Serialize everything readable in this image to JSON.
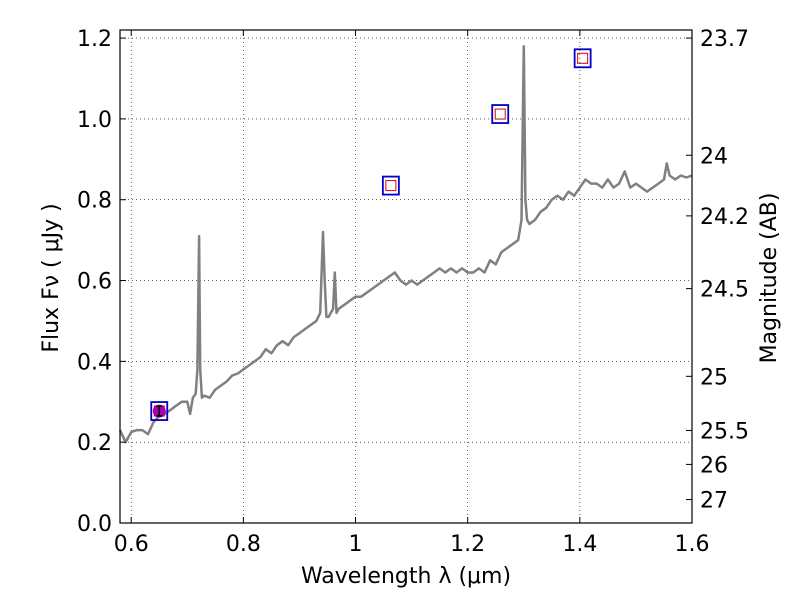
{
  "chart_data": {
    "type": "line",
    "xlabel": "Wavelength  λ (μm)",
    "ylabel": "Flux  Fν  ( μJy )",
    "y2label": "Magnitude (AB)",
    "xlim": [
      0.58,
      1.6
    ],
    "ylim": [
      0.0,
      1.22
    ],
    "grid": true,
    "x_ticks": [
      0.6,
      0.8,
      1.0,
      1.2,
      1.4,
      1.6
    ],
    "x_tick_labels": [
      "0.6",
      "0.8",
      "1",
      "1.2",
      "1.4",
      "1.6"
    ],
    "y_ticks": [
      0.0,
      0.2,
      0.4,
      0.6,
      0.8,
      1.0,
      1.2
    ],
    "y_tick_labels": [
      "0.0",
      "0.2",
      "0.4",
      "0.6",
      "0.8",
      "1.0",
      "1.2"
    ],
    "mag_ticks": [
      {
        "label": "23.7",
        "flux": 1.2
      },
      {
        "label": "24",
        "flux": 0.91
      },
      {
        "label": "24.2",
        "flux": 0.76
      },
      {
        "label": "24.5",
        "flux": 0.58
      },
      {
        "label": "25",
        "flux": 0.363
      },
      {
        "label": "25.5",
        "flux": 0.229
      },
      {
        "label": "26",
        "flux": 0.145
      },
      {
        "label": "27",
        "flux": 0.058
      }
    ],
    "colors": {
      "spectrum": "#808080",
      "box": "#0000cc",
      "inner_box": "#dd0000",
      "point": "#aa00aa"
    },
    "series": [
      {
        "style": "line",
        "x": [
          0.58,
          0.59,
          0.6,
          0.61,
          0.62,
          0.63,
          0.64,
          0.65,
          0.66,
          0.67,
          0.68,
          0.69,
          0.7,
          0.705,
          0.71,
          0.715,
          0.718,
          0.721,
          0.723,
          0.726,
          0.73,
          0.74,
          0.75,
          0.76,
          0.77,
          0.78,
          0.79,
          0.8,
          0.81,
          0.82,
          0.83,
          0.84,
          0.85,
          0.86,
          0.87,
          0.88,
          0.89,
          0.9,
          0.91,
          0.92,
          0.93,
          0.937,
          0.942,
          0.945,
          0.948,
          0.952,
          0.96,
          0.963,
          0.966,
          0.97,
          0.98,
          0.99,
          1.0,
          1.01,
          1.02,
          1.03,
          1.04,
          1.05,
          1.06,
          1.07,
          1.08,
          1.09,
          1.1,
          1.11,
          1.12,
          1.13,
          1.14,
          1.15,
          1.16,
          1.17,
          1.18,
          1.19,
          1.2,
          1.21,
          1.22,
          1.23,
          1.24,
          1.25,
          1.26,
          1.27,
          1.28,
          1.29,
          1.296,
          1.3,
          1.303,
          1.306,
          1.31,
          1.32,
          1.33,
          1.34,
          1.35,
          1.36,
          1.37,
          1.38,
          1.39,
          1.4,
          1.41,
          1.42,
          1.43,
          1.44,
          1.45,
          1.46,
          1.47,
          1.48,
          1.49,
          1.5,
          1.51,
          1.52,
          1.53,
          1.54,
          1.55,
          1.555,
          1.56,
          1.57,
          1.58,
          1.59,
          1.6
        ],
        "y": [
          0.23,
          0.2,
          0.225,
          0.23,
          0.23,
          0.22,
          0.25,
          0.265,
          0.27,
          0.28,
          0.29,
          0.3,
          0.3,
          0.27,
          0.31,
          0.32,
          0.38,
          0.71,
          0.38,
          0.31,
          0.315,
          0.31,
          0.33,
          0.34,
          0.35,
          0.365,
          0.37,
          0.38,
          0.39,
          0.4,
          0.41,
          0.43,
          0.42,
          0.44,
          0.45,
          0.44,
          0.46,
          0.47,
          0.48,
          0.49,
          0.5,
          0.52,
          0.72,
          0.6,
          0.51,
          0.51,
          0.53,
          0.62,
          0.52,
          0.53,
          0.54,
          0.55,
          0.56,
          0.56,
          0.57,
          0.58,
          0.59,
          0.6,
          0.61,
          0.62,
          0.6,
          0.59,
          0.6,
          0.59,
          0.6,
          0.61,
          0.62,
          0.63,
          0.62,
          0.63,
          0.62,
          0.63,
          0.62,
          0.62,
          0.63,
          0.62,
          0.65,
          0.64,
          0.67,
          0.68,
          0.69,
          0.7,
          0.75,
          1.18,
          0.8,
          0.75,
          0.74,
          0.75,
          0.77,
          0.78,
          0.8,
          0.81,
          0.8,
          0.82,
          0.81,
          0.83,
          0.85,
          0.84,
          0.84,
          0.83,
          0.85,
          0.83,
          0.84,
          0.87,
          0.83,
          0.84,
          0.83,
          0.82,
          0.83,
          0.84,
          0.85,
          0.89,
          0.86,
          0.85,
          0.86,
          0.855,
          0.86
        ]
      },
      {
        "style": "markers",
        "marker": "square",
        "x": [
          0.65,
          1.063,
          1.258,
          1.405
        ],
        "y": [
          0.277,
          0.835,
          1.012,
          1.15
        ]
      },
      {
        "style": "markers",
        "marker": "circle",
        "x": [
          0.65
        ],
        "y": [
          0.277
        ],
        "yerr": [
          0.012
        ]
      }
    ]
  }
}
